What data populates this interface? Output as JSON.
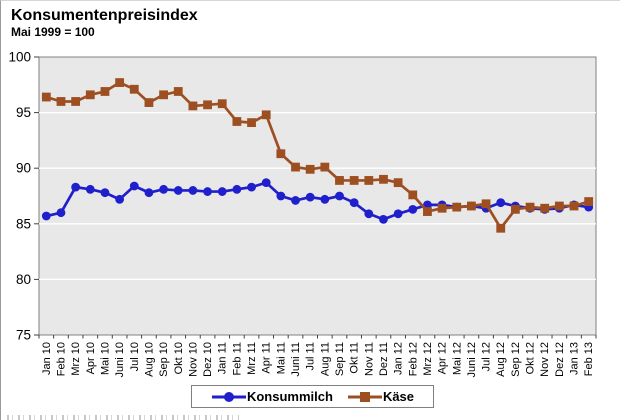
{
  "header": {
    "title": "Konsumentenpreisindex",
    "subtitle": "Mai 1999 = 100"
  },
  "chart_data": {
    "type": "line",
    "title": "Konsumentenpreisindex",
    "subtitle": "Mai 1999 = 100",
    "xlabel": "",
    "ylabel": "",
    "ylim": [
      75,
      100
    ],
    "yticks": [
      75,
      80,
      85,
      90,
      95,
      100
    ],
    "grid": "horizontal-major",
    "plot_bg_color": "#e8e8e8",
    "grid_color": "#ffffff",
    "plot_border_color": "#808080",
    "legend_position": "bottom",
    "categories": [
      "Jan 10",
      "Feb 10",
      "Mrz 10",
      "Apr 10",
      "Mai 10",
      "Juni 10",
      "Jul 10",
      "Aug 10",
      "Sep 10",
      "Okt 10",
      "Nov 10",
      "Dez 10",
      "Jan 11",
      "Feb 11",
      "Mrz 11",
      "Apr 11",
      "Mai 11",
      "Juni 11",
      "Jul 11",
      "Aug 11",
      "Sep 11",
      "Okt 11",
      "Nov 11",
      "Dez 11",
      "Jan 12",
      "Feb 12",
      "Mrz 12",
      "Apr 12",
      "Mai 12",
      "Juni 12",
      "Jul 12",
      "Aug 12",
      "Sep 12",
      "Okt 12",
      "Nov 12",
      "Dez 12",
      "Jan 13",
      "Feb 13"
    ],
    "series": [
      {
        "name": "Konsummilch",
        "color": "#1f1fcc",
        "marker": "circle",
        "values": [
          85.7,
          86.0,
          88.3,
          88.1,
          87.8,
          87.2,
          88.4,
          87.8,
          88.1,
          88.0,
          88.0,
          87.9,
          87.9,
          88.1,
          88.3,
          88.7,
          87.5,
          87.1,
          87.4,
          87.2,
          87.5,
          86.9,
          85.9,
          85.4,
          85.9,
          86.3,
          86.7,
          86.7,
          86.5,
          86.6,
          86.4,
          86.9,
          86.6,
          86.4,
          86.3,
          86.4,
          86.7,
          86.5
        ]
      },
      {
        "name": "Käse",
        "color": "#9e4f22",
        "marker": "square",
        "values": [
          96.4,
          96.0,
          96.0,
          96.6,
          96.9,
          97.7,
          97.1,
          95.9,
          96.6,
          96.9,
          95.6,
          95.7,
          95.8,
          94.2,
          94.1,
          94.8,
          91.3,
          90.1,
          89.9,
          90.1,
          88.9,
          88.9,
          88.9,
          89.0,
          88.7,
          87.6,
          86.1,
          86.4,
          86.5,
          86.6,
          86.8,
          84.6,
          86.3,
          86.5,
          86.4,
          86.6,
          86.6,
          87.0
        ]
      }
    ]
  }
}
